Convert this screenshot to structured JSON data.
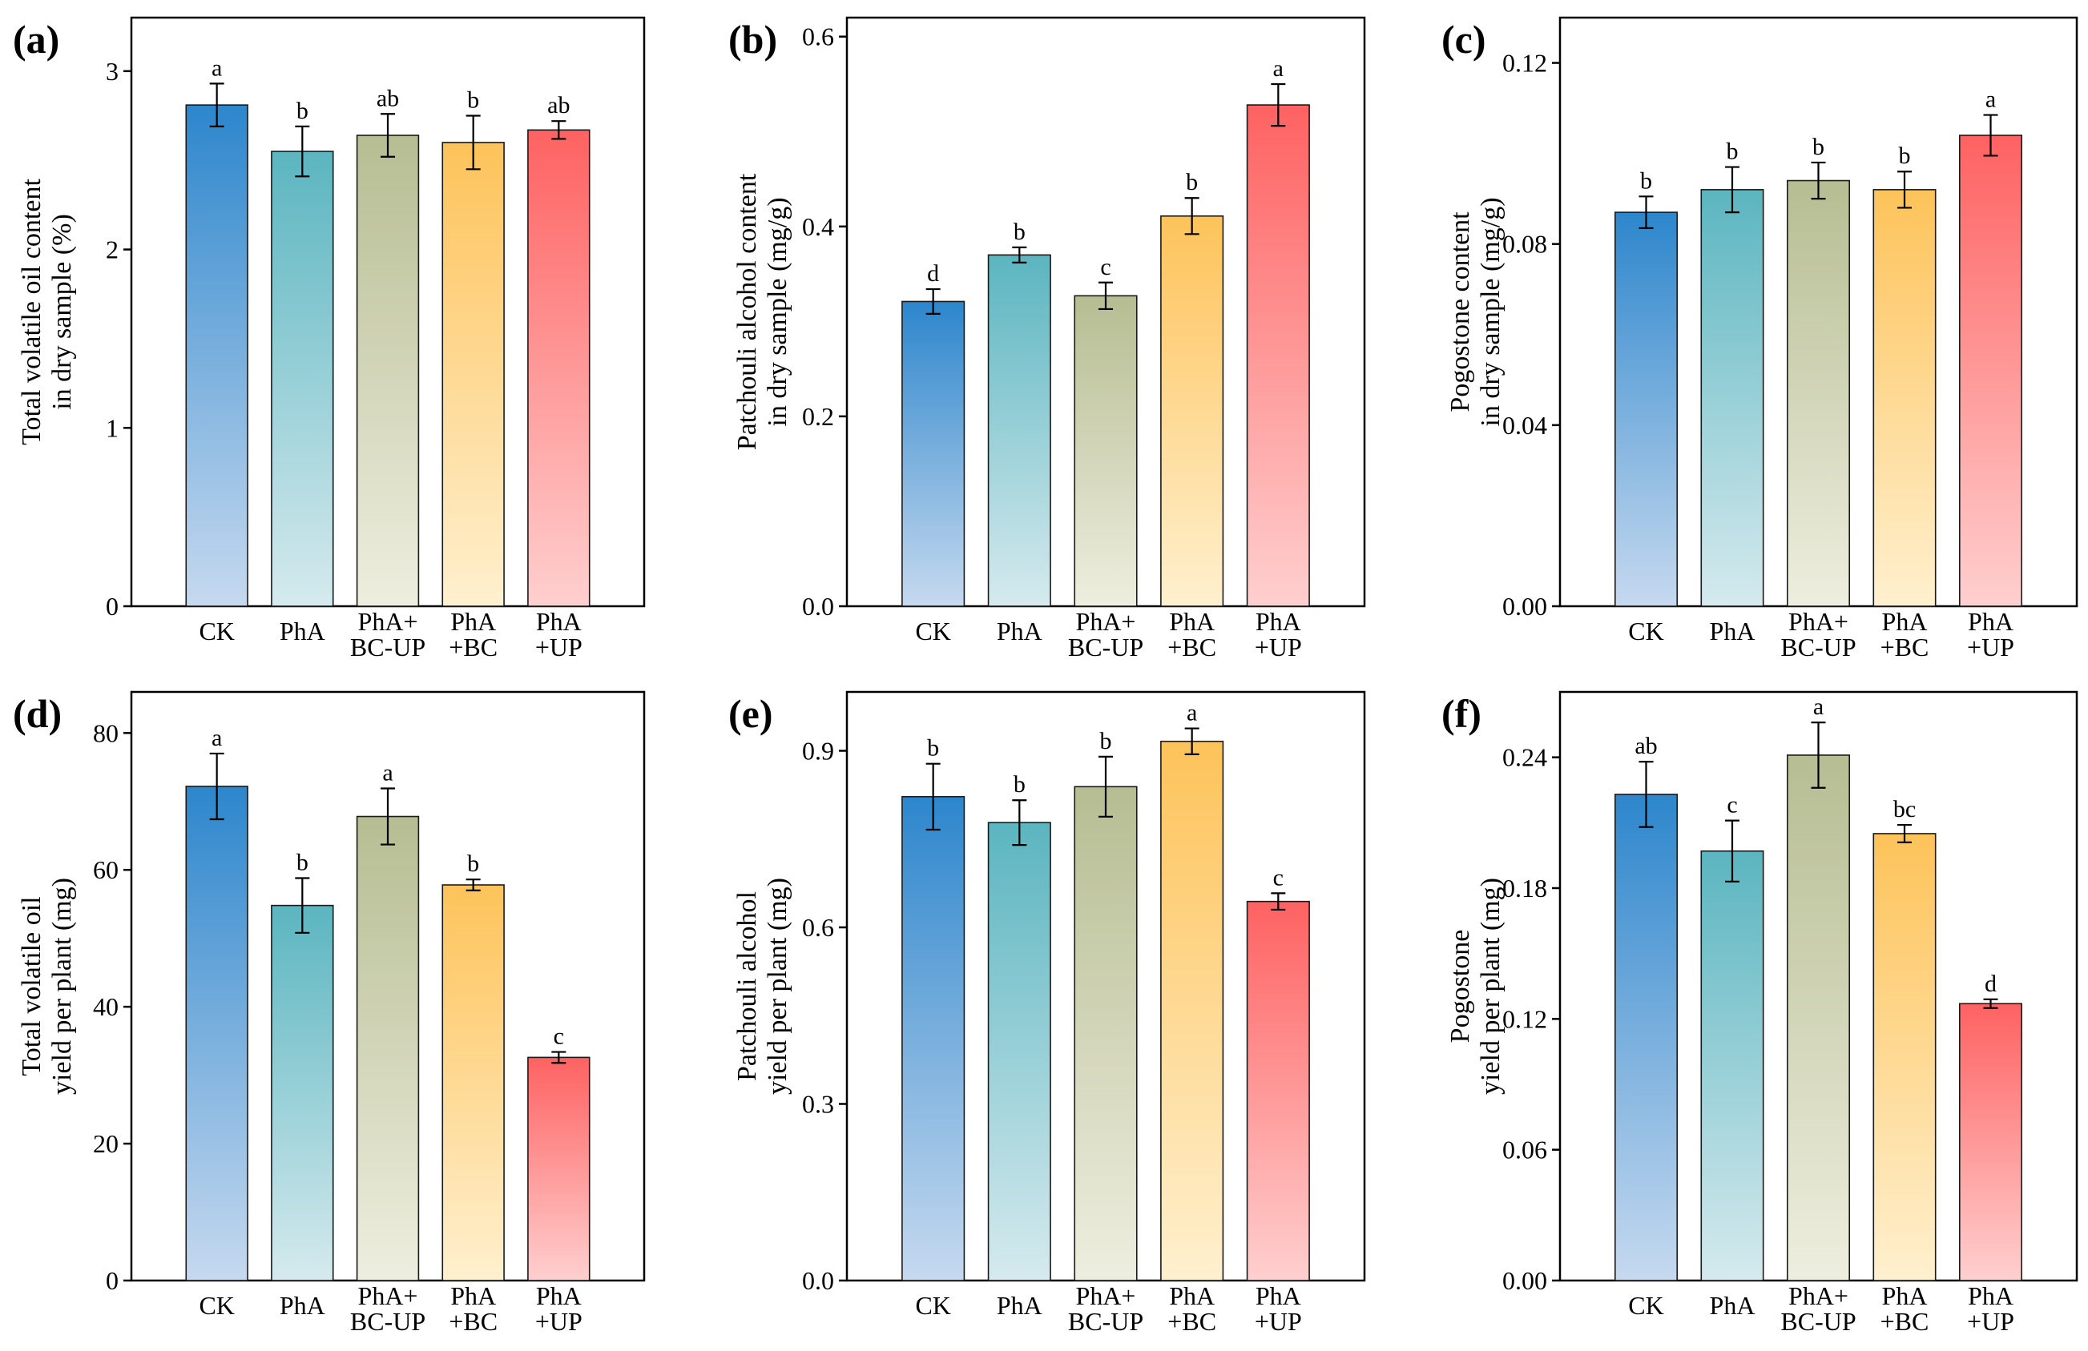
{
  "colors": {
    "CK": [
      "#2d86cc",
      "#c6d9ef"
    ],
    "PhA": [
      "#5bb5c0",
      "#d5eaee"
    ],
    "PhA+BC-UP": [
      "#b6bd92",
      "#eeeedf"
    ],
    "PhA+BC": [
      "#fdc35a",
      "#fff0cf"
    ],
    "PhA+UP": [
      "#fe6262",
      "#ffcfcf"
    ]
  },
  "chart_data": [
    {
      "panel": "(a)",
      "type": "bar",
      "categories": [
        "CK",
        "PhA",
        "PhA+BC-UP",
        "PhA+BC",
        "PhA+UP"
      ],
      "category_lines": [
        [
          "CK"
        ],
        [
          "PhA"
        ],
        [
          "PhA+",
          "BC-UP"
        ],
        [
          "PhA",
          "+BC"
        ],
        [
          "PhA",
          "+UP"
        ]
      ],
      "values": [
        2.81,
        2.55,
        2.64,
        2.6,
        2.67
      ],
      "errors": [
        0.12,
        0.14,
        0.12,
        0.15,
        0.05
      ],
      "significance": [
        "a",
        "b",
        "ab",
        "b",
        "ab"
      ],
      "ylabel_lines": [
        "Total volatile oil content",
        "in dry sample (%)"
      ],
      "ylim": [
        0,
        3.3
      ],
      "yticks": [
        0,
        1,
        2,
        3
      ],
      "ytick_labels": [
        "0",
        "1",
        "2",
        "3"
      ]
    },
    {
      "panel": "(b)",
      "type": "bar",
      "categories": [
        "CK",
        "PhA",
        "PhA+BC-UP",
        "PhA+BC",
        "PhA+UP"
      ],
      "category_lines": [
        [
          "CK"
        ],
        [
          "PhA"
        ],
        [
          "PhA+",
          "BC-UP"
        ],
        [
          "PhA",
          "+BC"
        ],
        [
          "PhA",
          "+UP"
        ]
      ],
      "values": [
        0.321,
        0.37,
        0.327,
        0.411,
        0.528
      ],
      "errors": [
        0.013,
        0.008,
        0.014,
        0.019,
        0.022
      ],
      "significance": [
        "d",
        "b",
        "c",
        "b",
        "a"
      ],
      "ylabel_lines": [
        "Patchouli alcohol content",
        "in dry sample (mg/g)"
      ],
      "ylim": [
        0,
        0.62
      ],
      "yticks": [
        0,
        0.2,
        0.4,
        0.6
      ],
      "ytick_labels": [
        "0.0",
        "0.2",
        "0.4",
        "0.6"
      ]
    },
    {
      "panel": "(c)",
      "type": "bar",
      "categories": [
        "CK",
        "PhA",
        "PhA+BC-UP",
        "PhA+BC",
        "PhA+UP"
      ],
      "category_lines": [
        [
          "CK"
        ],
        [
          "PhA"
        ],
        [
          "PhA+",
          "BC-UP"
        ],
        [
          "PhA",
          "+BC"
        ],
        [
          "PhA",
          "+UP"
        ]
      ],
      "values": [
        0.087,
        0.092,
        0.094,
        0.092,
        0.104
      ],
      "errors": [
        0.0035,
        0.005,
        0.004,
        0.004,
        0.0045
      ],
      "significance": [
        "b",
        "b",
        "b",
        "b",
        "a"
      ],
      "ylabel_lines": [
        "Pogostone content",
        "in dry sample (mg/g)"
      ],
      "ylim": [
        0,
        0.13
      ],
      "yticks": [
        0,
        0.04,
        0.08,
        0.12
      ],
      "ytick_labels": [
        "0.00",
        "0.04",
        "0.08",
        "0.12"
      ]
    },
    {
      "panel": "(d)",
      "type": "bar",
      "categories": [
        "CK",
        "PhA",
        "PhA+BC-UP",
        "PhA+BC",
        "PhA+UP"
      ],
      "category_lines": [
        [
          "CK"
        ],
        [
          "PhA"
        ],
        [
          "PhA+",
          "BC-UP"
        ],
        [
          "PhA",
          "+BC"
        ],
        [
          "PhA",
          "+UP"
        ]
      ],
      "values": [
        72.2,
        54.8,
        67.8,
        57.8,
        32.6
      ],
      "errors": [
        4.8,
        4.0,
        4.1,
        0.8,
        0.8
      ],
      "significance": [
        "a",
        "b",
        "a",
        "b",
        "c"
      ],
      "ylabel_lines": [
        "Total volatile oil",
        "yield per plant (mg)"
      ],
      "ylim": [
        0,
        86
      ],
      "yticks": [
        0,
        20,
        40,
        60,
        80
      ],
      "ytick_labels": [
        "0",
        "20",
        "40",
        "60",
        "80"
      ]
    },
    {
      "panel": "(e)",
      "type": "bar",
      "categories": [
        "CK",
        "PhA",
        "PhA+BC-UP",
        "PhA+BC",
        "PhA+UP"
      ],
      "category_lines": [
        [
          "CK"
        ],
        [
          "PhA"
        ],
        [
          "PhA+",
          "BC-UP"
        ],
        [
          "PhA",
          "+BC"
        ],
        [
          "PhA",
          "+UP"
        ]
      ],
      "values": [
        0.822,
        0.778,
        0.839,
        0.916,
        0.644
      ],
      "errors": [
        0.056,
        0.038,
        0.051,
        0.022,
        0.014
      ],
      "significance": [
        "b",
        "b",
        "b",
        "a",
        "c"
      ],
      "ylabel_lines": [
        "Patchouli alcohol",
        "yield per plant (mg)"
      ],
      "ylim": [
        0,
        1.0
      ],
      "yticks": [
        0,
        0.3,
        0.6,
        0.9
      ],
      "ytick_labels": [
        "0.0",
        "0.3",
        "0.6",
        "0.9"
      ]
    },
    {
      "panel": "(f)",
      "type": "bar",
      "categories": [
        "CK",
        "PhA",
        "PhA+BC-UP",
        "PhA+BC",
        "PhA+UP"
      ],
      "category_lines": [
        [
          "CK"
        ],
        [
          "PhA"
        ],
        [
          "PhA+",
          "BC-UP"
        ],
        [
          "PhA",
          "+BC"
        ],
        [
          "PhA",
          "+UP"
        ]
      ],
      "values": [
        0.223,
        0.197,
        0.241,
        0.205,
        0.127
      ],
      "errors": [
        0.015,
        0.014,
        0.015,
        0.004,
        0.002
      ],
      "significance": [
        "ab",
        "c",
        "a",
        "bc",
        "d"
      ],
      "ylabel_lines": [
        "Pogostone",
        "yield per plant (mg)"
      ],
      "ylim": [
        0,
        0.27
      ],
      "yticks": [
        0,
        0.06,
        0.12,
        0.18,
        0.24
      ],
      "ytick_labels": [
        "0.00",
        "0.06",
        "0.12",
        "0.18",
        "0.24"
      ]
    }
  ]
}
